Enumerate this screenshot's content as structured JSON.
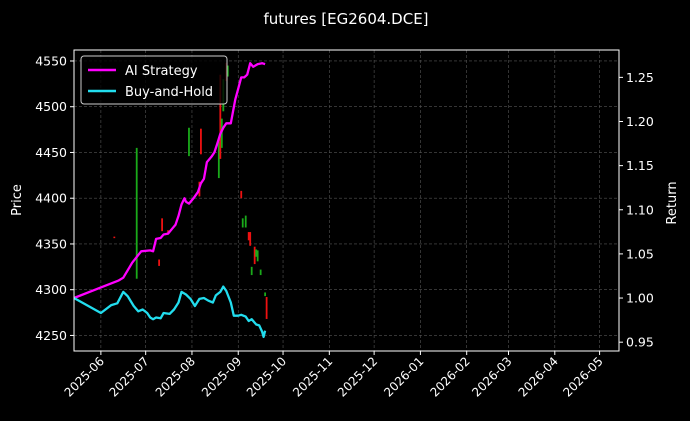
{
  "chart_data": {
    "type": "line",
    "title": "futures [EG2604.DCE]",
    "ylabel": "Price",
    "y2label": "Return",
    "x_axis": {
      "type": "date",
      "range": [
        "2025-05-14",
        "2026-05-14"
      ],
      "tick_labels": [
        "2025-06",
        "2025-07",
        "2025-08",
        "2025-09",
        "2025-10",
        "2025-11",
        "2025-12",
        "2026-01",
        "2026-02",
        "2026-03",
        "2026-04",
        "2026-05"
      ]
    },
    "y_left": {
      "range": [
        4233,
        4562
      ],
      "ticks": [
        4250,
        4300,
        4350,
        4400,
        4450,
        4500,
        4550
      ]
    },
    "y_right": {
      "range": [
        0.94,
        1.281
      ],
      "ticks": [
        0.95,
        1.0,
        1.05,
        1.1,
        1.15,
        1.2,
        1.25
      ]
    },
    "grid": true,
    "legend_position": "top-left",
    "series": [
      {
        "name": "AI Strategy",
        "color": "#ff00ff",
        "axis": "right",
        "points": [
          [
            "2025-05-14",
            1.0
          ],
          [
            "2025-06-01",
            1.012
          ],
          [
            "2025-06-13",
            1.02
          ],
          [
            "2025-06-16",
            1.023
          ],
          [
            "2025-06-22",
            1.04
          ],
          [
            "2025-06-28",
            1.053
          ],
          [
            "2025-07-04",
            1.054
          ],
          [
            "2025-07-06",
            1.053
          ],
          [
            "2025-07-08",
            1.067
          ],
          [
            "2025-07-11",
            1.068
          ],
          [
            "2025-07-13",
            1.072
          ],
          [
            "2025-07-16",
            1.073
          ],
          [
            "2025-07-19",
            1.079
          ],
          [
            "2025-07-21",
            1.083
          ],
          [
            "2025-07-23",
            1.093
          ],
          [
            "2025-07-25",
            1.106
          ],
          [
            "2025-07-27",
            1.113
          ],
          [
            "2025-07-28",
            1.109
          ],
          [
            "2025-07-30",
            1.107
          ],
          [
            "2025-08-02",
            1.113
          ],
          [
            "2025-08-05",
            1.12
          ],
          [
            "2025-08-07",
            1.13
          ],
          [
            "2025-08-09",
            1.135
          ],
          [
            "2025-08-11",
            1.154
          ],
          [
            "2025-08-14",
            1.16
          ],
          [
            "2025-08-16",
            1.165
          ],
          [
            "2025-08-18",
            1.175
          ],
          [
            "2025-08-20",
            1.186
          ],
          [
            "2025-08-22",
            1.193
          ],
          [
            "2025-08-24",
            1.198
          ],
          [
            "2025-08-27",
            1.198
          ],
          [
            "2025-08-30",
            1.225
          ],
          [
            "2025-09-01",
            1.237
          ],
          [
            "2025-09-03",
            1.25
          ],
          [
            "2025-09-05",
            1.25
          ],
          [
            "2025-09-07",
            1.253
          ],
          [
            "2025-09-09",
            1.266
          ],
          [
            "2025-09-11",
            1.262
          ],
          [
            "2025-09-14",
            1.265
          ],
          [
            "2025-09-17",
            1.266
          ],
          [
            "2025-09-19",
            1.265
          ]
        ]
      },
      {
        "name": "Buy-and-Hold",
        "color": "#22ddee",
        "axis": "right",
        "points": [
          [
            "2025-05-14",
            1.0
          ],
          [
            "2025-06-01",
            0.983
          ],
          [
            "2025-06-08",
            0.992
          ],
          [
            "2025-06-12",
            0.994
          ],
          [
            "2025-06-16",
            1.007
          ],
          [
            "2025-06-19",
            1.002
          ],
          [
            "2025-06-23",
            0.991
          ],
          [
            "2025-06-26",
            0.985
          ],
          [
            "2025-06-29",
            0.987
          ],
          [
            "2025-07-02",
            0.983
          ],
          [
            "2025-07-04",
            0.978
          ],
          [
            "2025-07-06",
            0.976
          ],
          [
            "2025-07-08",
            0.978
          ],
          [
            "2025-07-11",
            0.977
          ],
          [
            "2025-07-13",
            0.983
          ],
          [
            "2025-07-17",
            0.982
          ],
          [
            "2025-07-20",
            0.987
          ],
          [
            "2025-07-23",
            0.995
          ],
          [
            "2025-07-25",
            1.007
          ],
          [
            "2025-07-28",
            1.004
          ],
          [
            "2025-07-31",
            0.999
          ],
          [
            "2025-08-03",
            0.991
          ],
          [
            "2025-08-06",
            0.999
          ],
          [
            "2025-08-09",
            1.0
          ],
          [
            "2025-08-12",
            0.997
          ],
          [
            "2025-08-15",
            0.995
          ],
          [
            "2025-08-17",
            1.003
          ],
          [
            "2025-08-20",
            1.007
          ],
          [
            "2025-08-22",
            1.013
          ],
          [
            "2025-08-24",
            1.008
          ],
          [
            "2025-08-27",
            0.995
          ],
          [
            "2025-08-29",
            0.98
          ],
          [
            "2025-09-01",
            0.98
          ],
          [
            "2025-09-03",
            0.981
          ],
          [
            "2025-09-06",
            0.979
          ],
          [
            "2025-09-08",
            0.974
          ],
          [
            "2025-09-10",
            0.976
          ],
          [
            "2025-09-13",
            0.97
          ],
          [
            "2025-09-15",
            0.969
          ],
          [
            "2025-09-17",
            0.962
          ],
          [
            "2025-09-18",
            0.956
          ],
          [
            "2025-09-19",
            0.963
          ]
        ]
      }
    ],
    "candles": {
      "axis": "left",
      "up_color": "#1aaa1a",
      "down_color": "#ee1111",
      "items": [
        [
          "2025-06-10",
          4358,
          4358,
          "down"
        ],
        [
          "2025-06-25",
          4312,
          4455,
          "up"
        ],
        [
          "2025-07-10",
          4326,
          4333,
          "down"
        ],
        [
          "2025-07-12",
          4364,
          4378,
          "down"
        ],
        [
          "2025-07-16",
          4362,
          4365,
          "down"
        ],
        [
          "2025-07-30",
          4446,
          4477,
          "up"
        ],
        [
          "2025-08-06",
          4402,
          4418,
          "down"
        ],
        [
          "2025-08-07",
          4448,
          4476,
          "down"
        ],
        [
          "2025-08-19",
          4422,
          4462,
          "up"
        ],
        [
          "2025-08-20",
          4443,
          4535,
          "down"
        ],
        [
          "2025-08-21",
          4455,
          4487,
          "up"
        ],
        [
          "2025-08-22",
          4495,
          4530,
          "up"
        ],
        [
          "2025-08-24",
          4528,
          4548,
          "down"
        ],
        [
          "2025-08-25",
          4533,
          4545,
          "up"
        ],
        [
          "2025-09-03",
          4400,
          4408,
          "down"
        ],
        [
          "2025-09-04",
          4368,
          4378,
          "up"
        ],
        [
          "2025-09-06",
          4368,
          4381,
          "up"
        ],
        [
          "2025-09-08",
          4354,
          4363,
          "down"
        ],
        [
          "2025-09-09",
          4348,
          4363,
          "down"
        ],
        [
          "2025-09-10",
          4316,
          4325,
          "up"
        ],
        [
          "2025-09-12",
          4328,
          4347,
          "down"
        ],
        [
          "2025-09-13",
          4336,
          4344,
          "up"
        ],
        [
          "2025-09-14",
          4331,
          4343,
          "up"
        ],
        [
          "2025-09-16",
          4316,
          4322,
          "up"
        ],
        [
          "2025-09-19",
          4293,
          4297,
          "up"
        ],
        [
          "2025-09-20",
          4268,
          4292,
          "down"
        ]
      ]
    }
  }
}
